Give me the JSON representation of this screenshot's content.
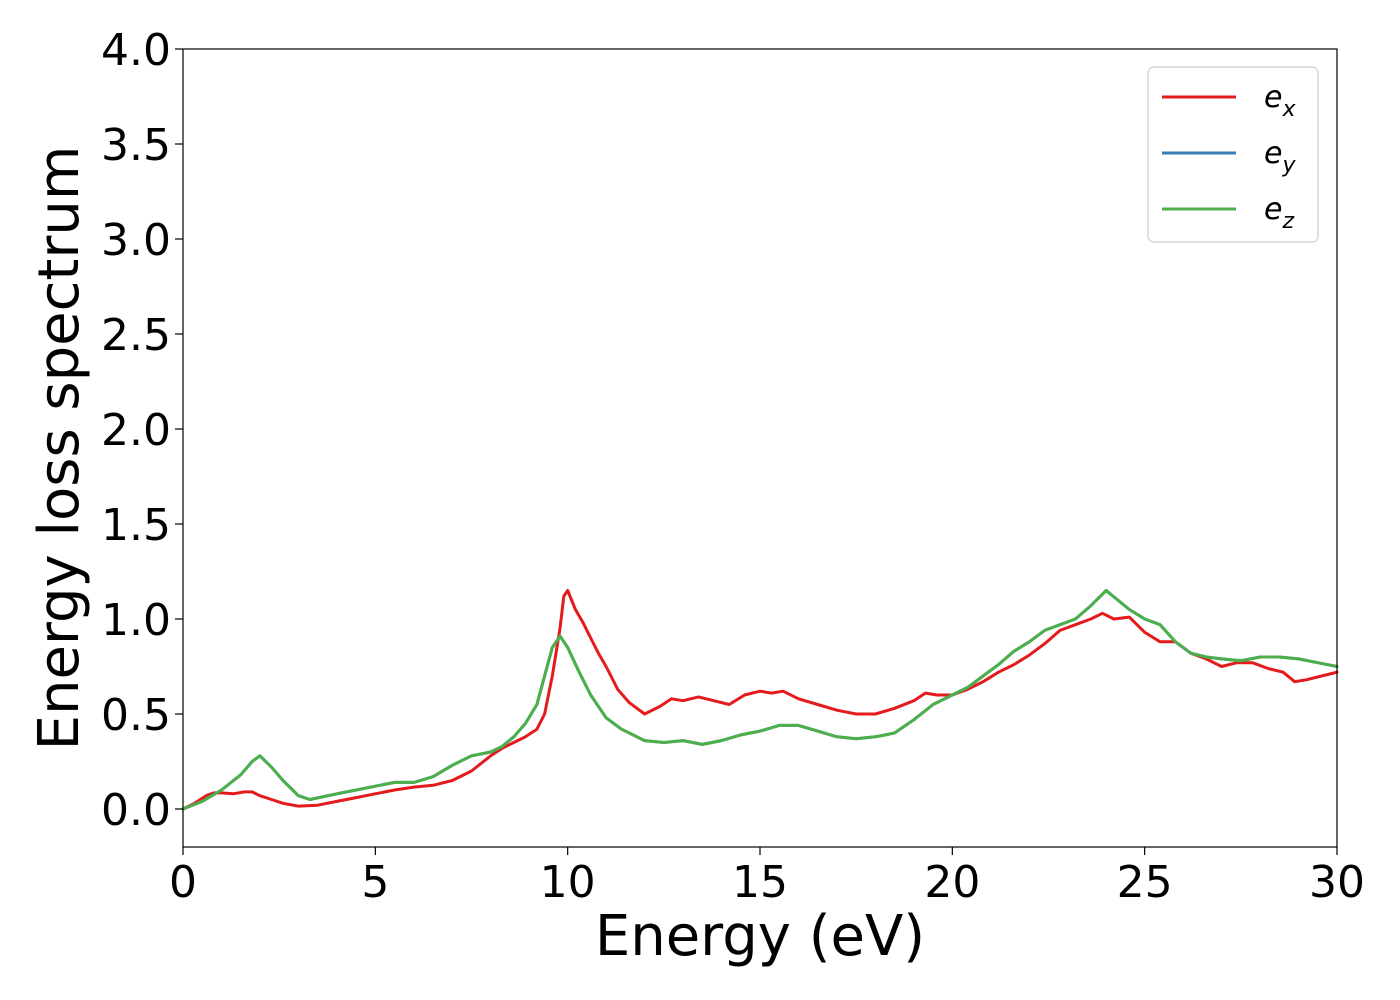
{
  "chart_data": {
    "type": "line",
    "xlabel": "Energy (eV)",
    "ylabel": "Energy loss spectrum",
    "xlim": [
      0,
      30
    ],
    "ylim": [
      -0.2,
      4.0
    ],
    "xticks": [
      0,
      5,
      10,
      15,
      20,
      25,
      30
    ],
    "xtick_labels": [
      "0",
      "5",
      "10",
      "15",
      "20",
      "25",
      "30"
    ],
    "yticks": [
      0.0,
      0.5,
      1.0,
      1.5,
      2.0,
      2.5,
      3.0,
      3.5,
      4.0
    ],
    "ytick_labels": [
      "0.0",
      "0.5",
      "1.0",
      "1.5",
      "2.0",
      "2.5",
      "3.0",
      "3.5",
      "4.0"
    ],
    "grid": false,
    "legend_position": "top-right",
    "series": [
      {
        "name": "e",
        "subscript": "x",
        "color": "#e41a1c",
        "x": [
          0,
          0.3,
          0.6,
          0.8,
          1.0,
          1.3,
          1.6,
          1.8,
          2.0,
          2.3,
          2.6,
          3.0,
          3.5,
          4.0,
          4.5,
          5.0,
          5.5,
          6.0,
          6.5,
          7.0,
          7.5,
          8.0,
          8.3,
          8.6,
          8.9,
          9.2,
          9.4,
          9.6,
          9.8,
          9.9,
          10.0,
          10.2,
          10.4,
          10.6,
          10.8,
          11.0,
          11.3,
          11.6,
          12.0,
          12.4,
          12.7,
          13.0,
          13.4,
          13.8,
          14.2,
          14.6,
          15.0,
          15.3,
          15.6,
          16.0,
          16.5,
          17.0,
          17.5,
          18.0,
          18.5,
          19.0,
          19.3,
          19.6,
          20.0,
          20.4,
          20.8,
          21.2,
          21.6,
          22.0,
          22.4,
          22.8,
          23.2,
          23.6,
          23.9,
          24.2,
          24.6,
          25.0,
          25.4,
          25.8,
          26.2,
          26.6,
          27.0,
          27.4,
          27.8,
          28.2,
          28.6,
          28.9,
          29.2,
          29.6,
          30.0
        ],
        "y": [
          0.0,
          0.03,
          0.07,
          0.085,
          0.085,
          0.08,
          0.09,
          0.09,
          0.07,
          0.05,
          0.03,
          0.015,
          0.02,
          0.04,
          0.06,
          0.08,
          0.1,
          0.115,
          0.125,
          0.15,
          0.2,
          0.28,
          0.32,
          0.35,
          0.38,
          0.42,
          0.5,
          0.7,
          0.95,
          1.12,
          1.15,
          1.05,
          0.98,
          0.9,
          0.82,
          0.75,
          0.63,
          0.56,
          0.5,
          0.54,
          0.58,
          0.57,
          0.59,
          0.57,
          0.55,
          0.6,
          0.62,
          0.61,
          0.62,
          0.58,
          0.55,
          0.52,
          0.5,
          0.5,
          0.53,
          0.57,
          0.61,
          0.6,
          0.6,
          0.63,
          0.67,
          0.72,
          0.76,
          0.81,
          0.87,
          0.94,
          0.97,
          1.0,
          1.03,
          1.0,
          1.01,
          0.93,
          0.88,
          0.88,
          0.82,
          0.79,
          0.75,
          0.77,
          0.77,
          0.74,
          0.72,
          0.67,
          0.68,
          0.7,
          0.72
        ]
      },
      {
        "name": "e",
        "subscript": "y",
        "color": "#377eb8",
        "x": [
          0,
          0.5,
          1.0,
          1.5,
          1.8,
          2.0,
          2.3,
          2.6,
          3.0,
          3.3,
          4.0,
          4.5,
          5.0,
          5.5,
          6.0,
          6.5,
          7.0,
          7.5,
          8.0,
          8.3,
          8.6,
          8.9,
          9.2,
          9.4,
          9.6,
          9.8,
          10.0,
          10.3,
          10.6,
          11.0,
          11.4,
          12.0,
          12.5,
          13.0,
          13.5,
          14.0,
          14.5,
          15.0,
          15.5,
          16.0,
          16.5,
          17.0,
          17.5,
          18.0,
          18.5,
          19.0,
          19.5,
          20.0,
          20.4,
          20.8,
          21.2,
          21.6,
          22.0,
          22.4,
          22.8,
          23.2,
          23.6,
          24.0,
          24.3,
          24.6,
          25.0,
          25.4,
          25.8,
          26.2,
          26.6,
          27.0,
          27.5,
          28.0,
          28.5,
          29.0,
          29.5,
          30.0
        ],
        "y": [
          0.0,
          0.04,
          0.1,
          0.18,
          0.25,
          0.28,
          0.22,
          0.15,
          0.07,
          0.05,
          0.08,
          0.1,
          0.12,
          0.14,
          0.14,
          0.17,
          0.23,
          0.28,
          0.3,
          0.33,
          0.38,
          0.45,
          0.55,
          0.7,
          0.85,
          0.91,
          0.85,
          0.72,
          0.6,
          0.48,
          0.42,
          0.36,
          0.35,
          0.36,
          0.34,
          0.36,
          0.39,
          0.41,
          0.44,
          0.44,
          0.41,
          0.38,
          0.37,
          0.38,
          0.4,
          0.47,
          0.55,
          0.6,
          0.64,
          0.7,
          0.76,
          0.83,
          0.88,
          0.94,
          0.97,
          1.0,
          1.07,
          1.15,
          1.1,
          1.05,
          1.0,
          0.97,
          0.88,
          0.82,
          0.8,
          0.79,
          0.78,
          0.8,
          0.8,
          0.79,
          0.77,
          0.75
        ]
      },
      {
        "name": "e",
        "subscript": "z",
        "color": "#4daf4a",
        "x": [
          0,
          0.5,
          1.0,
          1.5,
          1.8,
          2.0,
          2.3,
          2.6,
          3.0,
          3.3,
          4.0,
          4.5,
          5.0,
          5.5,
          6.0,
          6.5,
          7.0,
          7.5,
          8.0,
          8.3,
          8.6,
          8.9,
          9.2,
          9.4,
          9.6,
          9.8,
          10.0,
          10.3,
          10.6,
          11.0,
          11.4,
          12.0,
          12.5,
          13.0,
          13.5,
          14.0,
          14.5,
          15.0,
          15.5,
          16.0,
          16.5,
          17.0,
          17.5,
          18.0,
          18.5,
          19.0,
          19.5,
          20.0,
          20.4,
          20.8,
          21.2,
          21.6,
          22.0,
          22.4,
          22.8,
          23.2,
          23.6,
          24.0,
          24.3,
          24.6,
          25.0,
          25.4,
          25.8,
          26.2,
          26.6,
          27.0,
          27.5,
          28.0,
          28.5,
          29.0,
          29.5,
          30.0
        ],
        "y": [
          0.0,
          0.04,
          0.1,
          0.18,
          0.25,
          0.28,
          0.22,
          0.15,
          0.07,
          0.05,
          0.08,
          0.1,
          0.12,
          0.14,
          0.14,
          0.17,
          0.23,
          0.28,
          0.3,
          0.33,
          0.38,
          0.45,
          0.55,
          0.7,
          0.85,
          0.91,
          0.85,
          0.72,
          0.6,
          0.48,
          0.42,
          0.36,
          0.35,
          0.36,
          0.34,
          0.36,
          0.39,
          0.41,
          0.44,
          0.44,
          0.41,
          0.38,
          0.37,
          0.38,
          0.4,
          0.47,
          0.55,
          0.6,
          0.64,
          0.7,
          0.76,
          0.83,
          0.88,
          0.94,
          0.97,
          1.0,
          1.07,
          1.15,
          1.1,
          1.05,
          1.0,
          0.97,
          0.88,
          0.82,
          0.8,
          0.79,
          0.78,
          0.8,
          0.8,
          0.79,
          0.77,
          0.75
        ]
      }
    ]
  }
}
